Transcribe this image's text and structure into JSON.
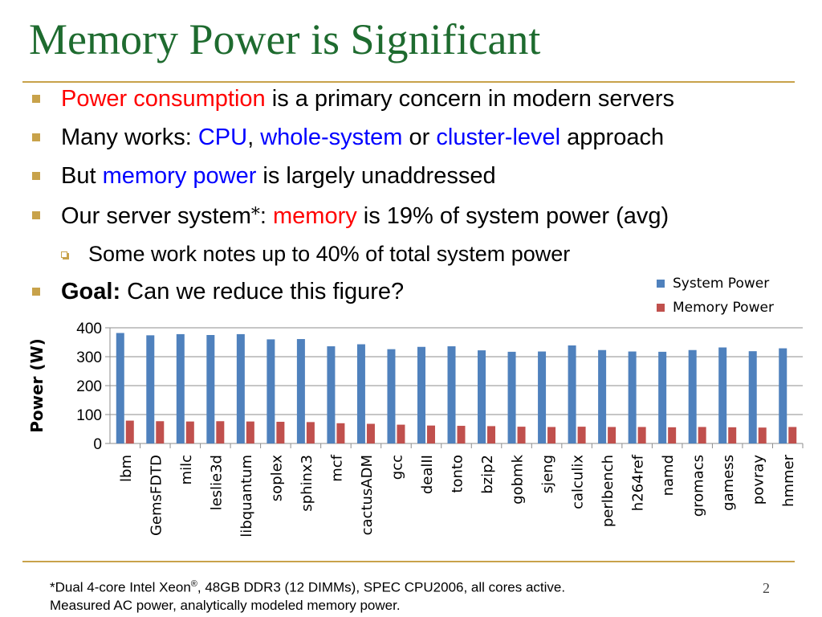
{
  "slide": {
    "title": "Memory Power is Significant",
    "number": "2"
  },
  "bullets": [
    {
      "parts": [
        {
          "text": "Power consumption",
          "color": "red"
        },
        {
          "text": " is a primary concern in modern servers"
        }
      ]
    },
    {
      "parts": [
        {
          "text": "Many works: "
        },
        {
          "text": "CPU",
          "color": "blue"
        },
        {
          "text": ", "
        },
        {
          "text": "whole-system",
          "color": "blue"
        },
        {
          "text": " or "
        },
        {
          "text": "cluster-level",
          "color": "blue"
        },
        {
          "text": " approach"
        }
      ]
    },
    {
      "parts": [
        {
          "text": "But "
        },
        {
          "text": "memory power",
          "color": "blue"
        },
        {
          "text": " is largely unaddressed"
        }
      ]
    },
    {
      "parts": [
        {
          "text": "Our server system"
        },
        {
          "text": "*",
          "asterisk": true
        },
        {
          "text": ": "
        },
        {
          "text": "memory",
          "color": "red"
        },
        {
          "text": " is 19% of system power (avg)"
        }
      ]
    },
    {
      "sub": true,
      "parts": [
        {
          "text": "Some work notes up to 40% of total system power"
        }
      ]
    },
    {
      "parts": [
        {
          "text": "Goal:",
          "bold": true
        },
        {
          "text": " Can we reduce this figure?"
        }
      ]
    }
  ],
  "footnote": {
    "line1_a": "*Dual 4-core Intel Xeon",
    "line1_sup": "®",
    "line1_b": ", 48GB DDR3 (12 DIMMs), SPEC CPU2006, all cores active.",
    "line2": "Measured AC power, analytically modeled memory power."
  },
  "chart_data": {
    "type": "bar",
    "ylabel": "Power (W)",
    "ylim": [
      0,
      400
    ],
    "yticks": [
      0,
      100,
      200,
      300,
      400
    ],
    "grid": true,
    "legend_position": "top-right",
    "categories": [
      "lbm",
      "GemsFDTD",
      "milc",
      "leslie3d",
      "libquantum",
      "soplex",
      "sphinx3",
      "mcf",
      "cactusADM",
      "gcc",
      "dealII",
      "tonto",
      "bzip2",
      "gobmk",
      "sjeng",
      "calculix",
      "perlbench",
      "h264ref",
      "namd",
      "gromacs",
      "gamess",
      "povray",
      "hmmer"
    ],
    "series": [
      {
        "name": "System Power",
        "color": "#4f81bd",
        "values": [
          382,
          374,
          378,
          375,
          378,
          360,
          361,
          336,
          343,
          326,
          334,
          336,
          322,
          317,
          318,
          339,
          323,
          318,
          317,
          323,
          332,
          319,
          329
        ]
      },
      {
        "name": "Memory Power",
        "color": "#c0504d",
        "values": [
          79,
          77,
          76,
          77,
          76,
          75,
          74,
          70,
          68,
          65,
          62,
          61,
          60,
          58,
          57,
          58,
          57,
          57,
          56,
          57,
          56,
          55,
          57
        ]
      }
    ]
  }
}
